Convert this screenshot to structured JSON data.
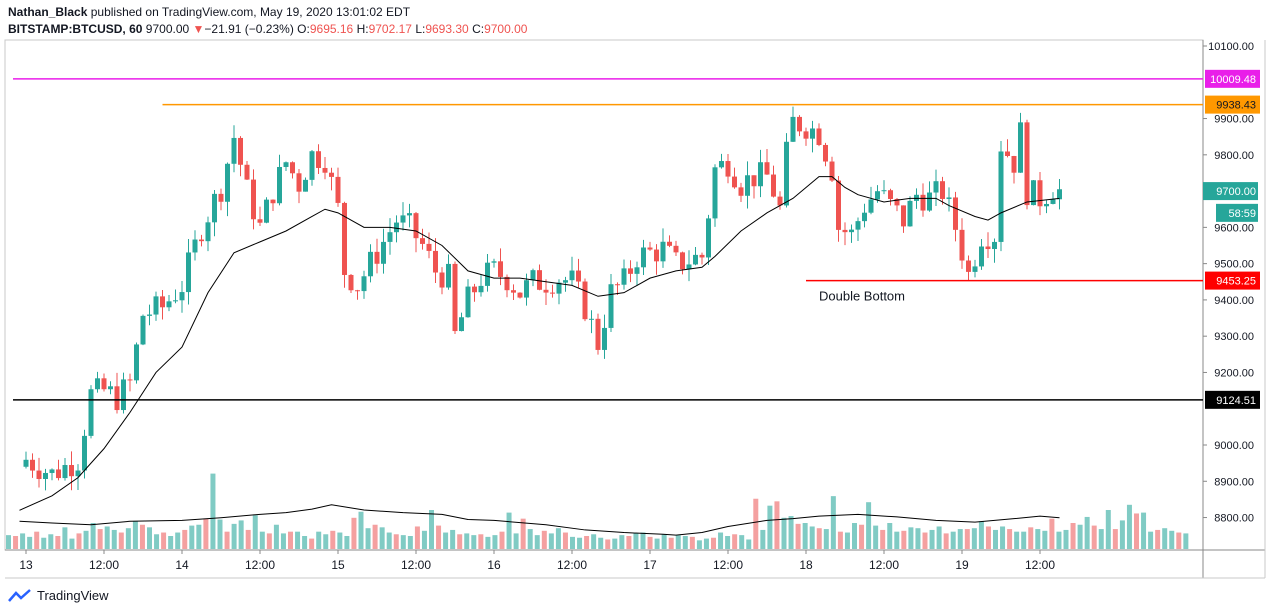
{
  "header": {
    "author": "Nathan_Black",
    "published_text": "published on TradingView.com, May 19, 2020 13:01:02 EDT",
    "symbol": "BITSTAMP:BTCUSD, 60",
    "last": "9700.00",
    "change_arrow": "▼",
    "change": "−21.91 (−0.23%)",
    "o_label": "O:",
    "o_value": "9695.16",
    "h_label": "H:",
    "h_value": "9702.17",
    "l_label": "L:",
    "l_value": "9693.30",
    "c_label": "C:",
    "c_value": "9700.00"
  },
  "footer": {
    "brand": "TradingView",
    "logo_icon": "tradingview-logo-icon"
  },
  "chart_data": {
    "type": "candlestick",
    "y_ticks": [
      {
        "value": 10100,
        "label": "10100.00"
      },
      {
        "value": 9900,
        "label": "9900.00"
      },
      {
        "value": 9800,
        "label": "9800.00"
      },
      {
        "value": 9600,
        "label": "9600.00"
      },
      {
        "value": 9500,
        "label": "9500.00"
      },
      {
        "value": 9400,
        "label": "9400.00"
      },
      {
        "value": 9300,
        "label": "9300.00"
      },
      {
        "value": 9200,
        "label": "9200.00"
      },
      {
        "value": 9000,
        "label": "9000.00"
      },
      {
        "value": 8900,
        "label": "8900.00"
      },
      {
        "value": 8800,
        "label": "8800.00"
      }
    ],
    "ylim": [
      8730,
      10130
    ],
    "x_ticks": [
      {
        "pos": 0,
        "label": "13"
      },
      {
        "pos": 12,
        "label": "12:00"
      },
      {
        "pos": 24,
        "label": "14"
      },
      {
        "pos": 36,
        "label": "12:00"
      },
      {
        "pos": 48,
        "label": "15"
      },
      {
        "pos": 60,
        "label": "12:00"
      },
      {
        "pos": 72,
        "label": "16"
      },
      {
        "pos": 84,
        "label": "12:00"
      },
      {
        "pos": 96,
        "label": "17"
      },
      {
        "pos": 108,
        "label": "12:00"
      },
      {
        "pos": 120,
        "label": "18"
      },
      {
        "pos": 132,
        "label": "12:00"
      },
      {
        "pos": 144,
        "label": "19"
      },
      {
        "pos": 156,
        "label": "12:00"
      }
    ],
    "horizontal_lines": [
      {
        "value": 10009.48,
        "label": "10009.48",
        "color": "#e91ee9",
        "from": -2,
        "to": 178
      },
      {
        "value": 9938.43,
        "label": "9938.43",
        "color": "#ff9800",
        "from": 21,
        "to": 178
      },
      {
        "value": 9453.25,
        "label": "9453.25",
        "color": "#ff0000",
        "from": 120,
        "to": 178
      },
      {
        "value": 9124.51,
        "label": "9124.51",
        "color": "#000000",
        "from": -2,
        "to": 178
      }
    ],
    "price_tags": [
      {
        "value": 9700,
        "label": "9700.00",
        "color": "#26a69a"
      },
      {
        "value": 9640,
        "label": "58:59",
        "color": "#26a69a"
      }
    ],
    "annotation": {
      "text": "Double Bottom",
      "x": 122,
      "value": 9410
    },
    "close_path": [
      [
        0,
        8960
      ],
      [
        4,
        8920
      ],
      [
        8,
        8960
      ],
      [
        10,
        9140
      ],
      [
        12,
        9150
      ],
      [
        14,
        9130
      ],
      [
        16,
        9170
      ],
      [
        18,
        9360
      ],
      [
        21,
        9380
      ],
      [
        24,
        9440
      ],
      [
        27,
        9600
      ],
      [
        30,
        9710
      ],
      [
        32,
        9850
      ],
      [
        34,
        9700
      ],
      [
        36,
        9600
      ],
      [
        38,
        9700
      ],
      [
        40,
        9780
      ],
      [
        42,
        9720
      ],
      [
        44,
        9800
      ],
      [
        46,
        9790
      ],
      [
        48,
        9650
      ],
      [
        49,
        9480
      ],
      [
        51,
        9440
      ],
      [
        53,
        9500
      ],
      [
        55,
        9560
      ],
      [
        57,
        9620
      ],
      [
        59,
        9600
      ],
      [
        61,
        9550
      ],
      [
        63,
        9480
      ],
      [
        65,
        9460
      ],
      [
        66,
        9300
      ],
      [
        68,
        9400
      ],
      [
        70,
        9460
      ],
      [
        72,
        9480
      ],
      [
        74,
        9460
      ],
      [
        76,
        9420
      ],
      [
        78,
        9450
      ],
      [
        80,
        9450
      ],
      [
        82,
        9460
      ],
      [
        84,
        9450
      ],
      [
        86,
        9380
      ],
      [
        88,
        9280
      ],
      [
        90,
        9420
      ],
      [
        92,
        9450
      ],
      [
        94,
        9520
      ],
      [
        96,
        9530
      ],
      [
        98,
        9540
      ],
      [
        100,
        9500
      ],
      [
        102,
        9510
      ],
      [
        104,
        9520
      ],
      [
        106,
        9760
      ],
      [
        108,
        9780
      ],
      [
        110,
        9720
      ],
      [
        112,
        9740
      ],
      [
        114,
        9740
      ],
      [
        115,
        9700
      ],
      [
        116,
        9650
      ],
      [
        117,
        9800
      ],
      [
        118,
        9890
      ],
      [
        120,
        9880
      ],
      [
        122,
        9860
      ],
      [
        124,
        9760
      ],
      [
        125,
        9600
      ],
      [
        127,
        9580
      ],
      [
        129,
        9660
      ],
      [
        131,
        9700
      ],
      [
        133,
        9660
      ],
      [
        135,
        9620
      ],
      [
        137,
        9690
      ],
      [
        139,
        9680
      ],
      [
        141,
        9700
      ],
      [
        143,
        9600
      ],
      [
        145,
        9470
      ],
      [
        147,
        9580
      ],
      [
        149,
        9580
      ],
      [
        150,
        9830
      ],
      [
        152,
        9780
      ],
      [
        153,
        9860
      ],
      [
        154,
        9700
      ],
      [
        156,
        9680
      ],
      [
        158,
        9710
      ],
      [
        159,
        9700
      ]
    ],
    "moving_average": [
      [
        -1,
        8820
      ],
      [
        4,
        8860
      ],
      [
        8,
        8910
      ],
      [
        12,
        8990
      ],
      [
        16,
        9090
      ],
      [
        20,
        9200
      ],
      [
        24,
        9270
      ],
      [
        28,
        9420
      ],
      [
        32,
        9530
      ],
      [
        36,
        9560
      ],
      [
        40,
        9590
      ],
      [
        44,
        9630
      ],
      [
        46,
        9650
      ],
      [
        48,
        9640
      ],
      [
        52,
        9600
      ],
      [
        56,
        9600
      ],
      [
        60,
        9590
      ],
      [
        64,
        9550
      ],
      [
        68,
        9480
      ],
      [
        72,
        9460
      ],
      [
        76,
        9460
      ],
      [
        80,
        9450
      ],
      [
        84,
        9440
      ],
      [
        88,
        9410
      ],
      [
        92,
        9420
      ],
      [
        96,
        9460
      ],
      [
        100,
        9480
      ],
      [
        104,
        9490
      ],
      [
        106,
        9520
      ],
      [
        110,
        9590
      ],
      [
        114,
        9640
      ],
      [
        118,
        9680
      ],
      [
        120,
        9710
      ],
      [
        122,
        9740
      ],
      [
        124,
        9740
      ],
      [
        126,
        9710
      ],
      [
        128,
        9690
      ],
      [
        132,
        9670
      ],
      [
        136,
        9680
      ],
      [
        140,
        9680
      ],
      [
        142,
        9660
      ],
      [
        146,
        9630
      ],
      [
        148,
        9620
      ],
      [
        150,
        9640
      ],
      [
        154,
        9670
      ],
      [
        159,
        9680
      ]
    ],
    "volume": {
      "max": 1500,
      "bar_values": [
        160,
        150,
        180,
        140,
        200,
        130,
        170,
        150,
        250,
        120,
        180,
        210,
        300,
        230,
        260,
        220,
        190,
        240,
        320,
        280,
        250,
        170,
        190,
        150,
        190,
        220,
        270,
        280,
        350,
        870,
        340,
        200,
        290,
        330,
        220,
        390,
        200,
        180,
        280,
        180,
        200,
        200,
        150,
        120,
        200,
        170,
        210,
        190,
        150,
        360,
        430,
        240,
        280,
        250,
        190,
        170,
        160,
        150,
        260,
        210,
        450,
        270,
        190,
        220,
        170,
        180,
        160,
        170,
        140,
        160,
        200,
        420,
        180,
        350,
        230,
        160,
        210,
        180,
        240,
        190,
        140,
        130,
        150,
        170,
        130,
        110,
        120,
        160,
        150,
        180,
        190,
        140,
        120,
        170,
        130,
        160,
        150,
        140,
        100,
        120,
        130,
        190,
        150,
        170,
        160,
        110,
        580,
        220,
        500,
        550,
        360,
        380,
        290,
        300,
        260,
        240,
        230,
        610,
        200,
        190,
        300,
        280,
        540,
        270,
        220,
        300,
        200,
        210,
        250,
        240,
        190,
        220,
        260,
        180,
        200,
        230,
        230,
        240,
        320,
        260,
        220,
        260,
        230,
        200,
        200,
        250,
        230,
        210,
        350,
        200,
        220,
        300,
        280,
        370,
        270,
        230,
        450,
        230,
        330,
        510,
        410,
        420,
        200,
        220,
        240,
        210,
        190,
        180
      ],
      "ma": [
        [
          -1,
          320
        ],
        [
          4,
          300
        ],
        [
          10,
          280
        ],
        [
          16,
          320
        ],
        [
          24,
          330
        ],
        [
          30,
          360
        ],
        [
          36,
          400
        ],
        [
          40,
          420
        ],
        [
          44,
          460
        ],
        [
          47,
          510
        ],
        [
          52,
          450
        ],
        [
          58,
          420
        ],
        [
          64,
          400
        ],
        [
          68,
          340
        ],
        [
          72,
          330
        ],
        [
          80,
          280
        ],
        [
          86,
          220
        ],
        [
          92,
          190
        ],
        [
          98,
          170
        ],
        [
          100,
          160
        ],
        [
          104,
          190
        ],
        [
          108,
          260
        ],
        [
          114,
          330
        ],
        [
          118,
          350
        ],
        [
          122,
          380
        ],
        [
          128,
          400
        ],
        [
          134,
          370
        ],
        [
          140,
          330
        ],
        [
          146,
          310
        ],
        [
          152,
          350
        ],
        [
          156,
          380
        ],
        [
          159,
          360
        ]
      ]
    },
    "colors": {
      "up": "#26a69a",
      "down": "#ef5350",
      "volume_up": "#80cbc4",
      "volume_down": "#f4a0a0",
      "ma": "#000000",
      "grid": "#e8e8e8"
    }
  }
}
